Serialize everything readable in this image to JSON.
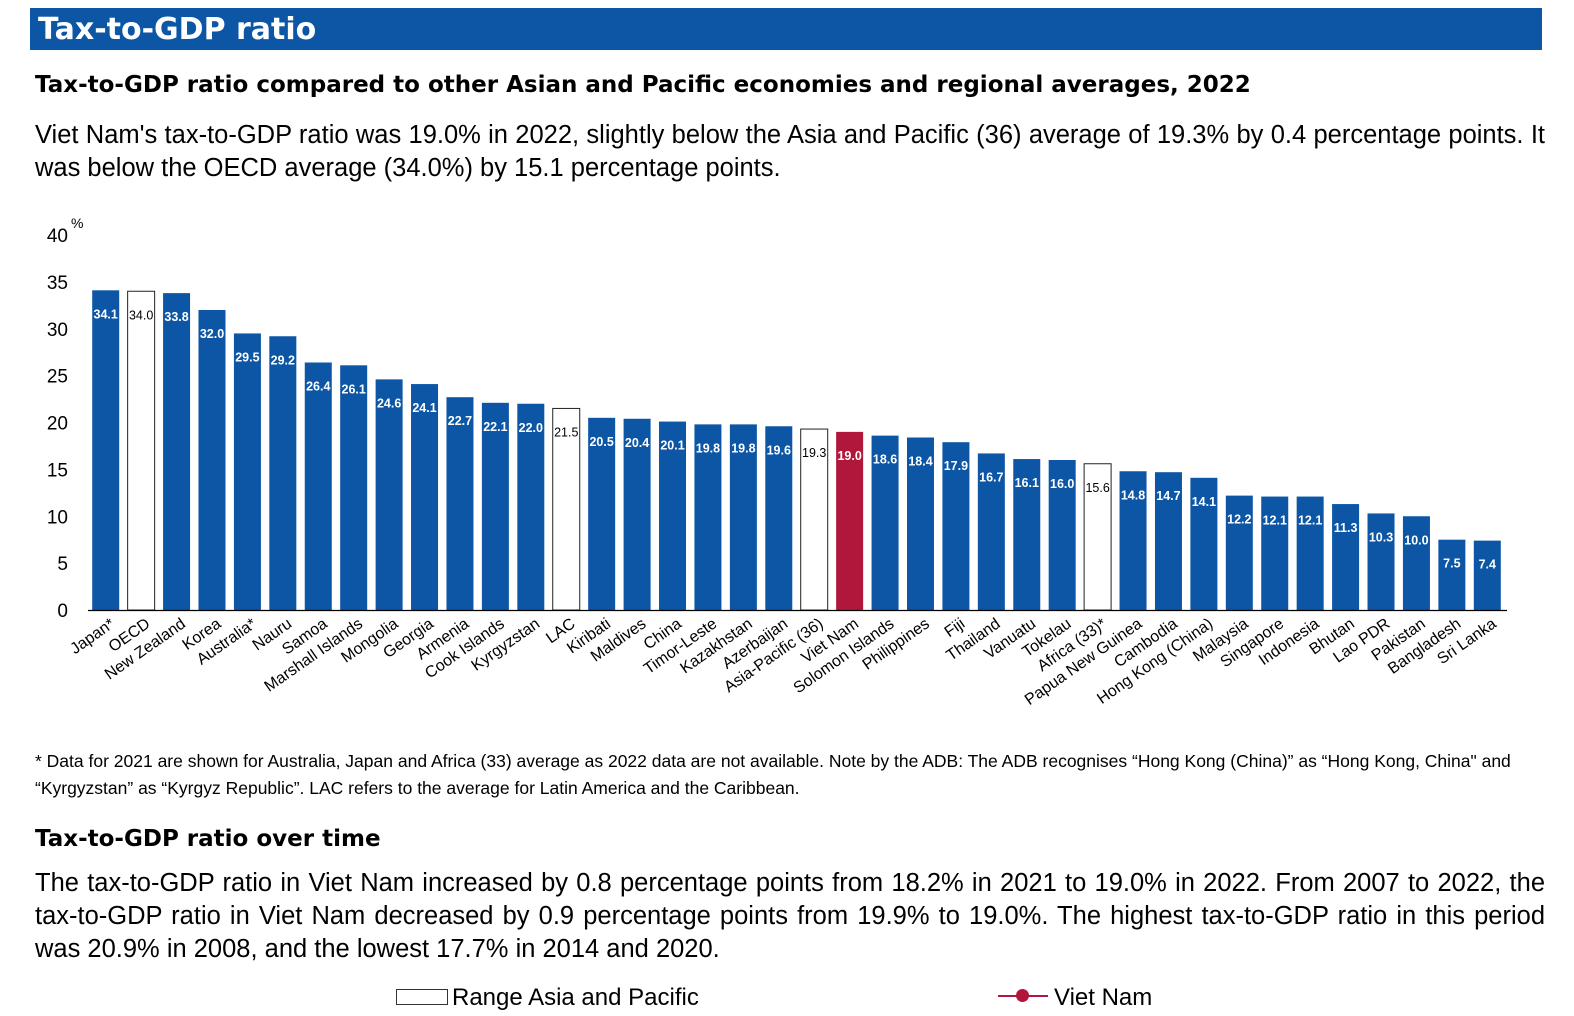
{
  "banner": {
    "title": "Tax-to-GDP ratio"
  },
  "section1": {
    "heading": "Tax-to-GDP ratio compared to other Asian and Pacific economies and regional averages, 2022",
    "paragraph": "Viet Nam's tax-to-GDP ratio was 19.0% in 2022, slightly below the Asia and Pacific (36) average of 19.3% by 0.4 percentage points. It was below the OECD average (34.0%) by 15.1 percentage points."
  },
  "chart_data": {
    "type": "bar",
    "title": "Tax-to-GDP ratio compared to other Asian and Pacific economies and regional averages, 2022",
    "ylabel": "%",
    "xlabel": "",
    "ylim": [
      0,
      40
    ],
    "yticks": [
      "0",
      "5",
      "10",
      "15",
      "20",
      "25",
      "30",
      "35",
      "40"
    ],
    "grid": false,
    "categories": [
      "Japan*",
      "OECD",
      "New Zealand",
      "Korea",
      "Australia*",
      "Nauru",
      "Samoa",
      "Marshall Islands",
      "Mongolia",
      "Georgia",
      "Armenia",
      "Cook Islands",
      "Kyrgyzstan",
      "LAC",
      "Kiribati",
      "Maldives",
      "China",
      "Timor-Leste",
      "Kazakhstan",
      "Azerbaijan",
      "Asia-Pacific (36)",
      "Viet Nam",
      "Solomon Islands",
      "Philippines",
      "Fiji",
      "Thailand",
      "Vanuatu",
      "Tokelau",
      "Africa (33)*",
      "Papua New Guinea",
      "Cambodia",
      "Hong Kong (China)",
      "Malaysia",
      "Singapore",
      "Indonesia",
      "Bhutan",
      "Lao PDR",
      "Pakistan",
      "Bangladesh",
      "Sri Lanka"
    ],
    "values": [
      34.1,
      34.0,
      33.8,
      32.0,
      29.5,
      29.2,
      26.4,
      26.1,
      24.6,
      24.1,
      22.7,
      22.1,
      22.0,
      21.5,
      20.5,
      20.4,
      20.1,
      19.8,
      19.8,
      19.6,
      19.3,
      19.0,
      18.6,
      18.4,
      17.9,
      16.7,
      16.1,
      16.0,
      15.6,
      14.8,
      14.7,
      14.1,
      12.2,
      12.1,
      12.1,
      11.3,
      10.3,
      10.0,
      7.5,
      7.4
    ],
    "labels": [
      "34.1",
      "34.0",
      "33.8",
      "32.0",
      "29.5",
      "29.2",
      "26.4",
      "26.1",
      "24.6",
      "24.1",
      "22.7",
      "22.1",
      "22.0",
      "21.5",
      "20.5",
      "20.4",
      "20.1",
      "19.8",
      "19.8",
      "19.6",
      "19.3",
      "19.0",
      "18.6",
      "18.4",
      "17.9",
      "16.7",
      "16.1",
      "16.0",
      "15.6",
      "14.8",
      "14.7",
      "14.1",
      "12.2",
      "12.1",
      "12.1",
      "11.3",
      "10.3",
      "10.0",
      "7.5",
      "7.4"
    ],
    "kinds": [
      "country",
      "average",
      "country",
      "country",
      "country",
      "country",
      "country",
      "country",
      "country",
      "country",
      "country",
      "country",
      "country",
      "average",
      "country",
      "country",
      "country",
      "country",
      "country",
      "country",
      "average",
      "highlight",
      "country",
      "country",
      "country",
      "country",
      "country",
      "country",
      "average",
      "country",
      "country",
      "country",
      "country",
      "country",
      "country",
      "country",
      "country",
      "country",
      "country",
      "country"
    ],
    "colors": {
      "country": "#0c56a5",
      "average": "#ffffff",
      "highlight": "#b0173b"
    }
  },
  "note": "* Data for 2021 are shown for Australia, Japan and Africa (33) average as 2022 data are not available. Note by the ADB: The ADB recognises “Hong Kong (China)” as “Hong Kong, China\" and “Kyrgyzstan” as “Kyrgyz Republic”. LAC refers to the average for Latin America and the Caribbean.",
  "section2": {
    "heading": "Tax-to-GDP ratio over time",
    "paragraph": "The tax-to-GDP ratio in Viet Nam increased by 0.8 percentage points from 18.2% in 2021 to 19.0% in 2022. From 2007 to 2022, the tax-to-GDP ratio in Viet Nam decreased by 0.9 percentage points from 19.9% to 19.0%. The highest tax-to-GDP ratio in this period was 20.9% in 2008, and the lowest 17.7% in 2014 and 2020."
  },
  "legend": {
    "range_label": "Range Asia and Pacific",
    "vietnam_label": "Viet Nam",
    "vietnam_color": "#b0173b"
  }
}
